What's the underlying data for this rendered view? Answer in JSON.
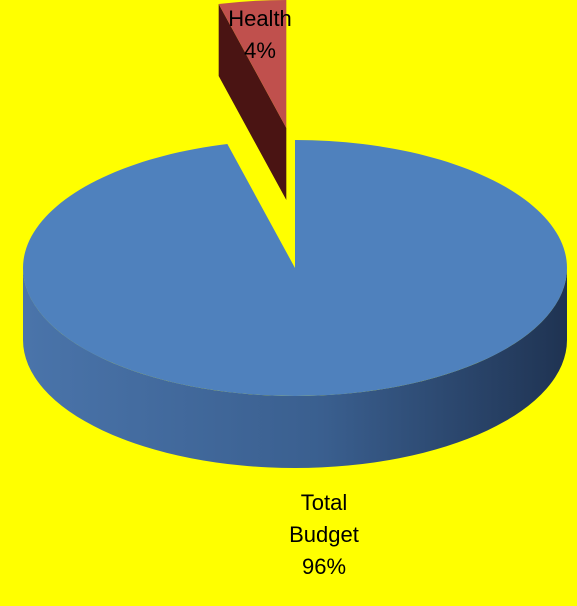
{
  "background": "#FFFF00",
  "chart_data": {
    "type": "pie",
    "style": "3d-exploded",
    "title": "",
    "slices": [
      {
        "label_lines": [
          "Total",
          "Budget"
        ],
        "percent_label": "96%",
        "value": 96,
        "color": "#4F81BD",
        "side_color_dark": "#1F3352",
        "side_color_light": "#4A74AA",
        "exploded": false
      },
      {
        "label_lines": [
          "Health"
        ],
        "percent_label": "4%",
        "value": 4,
        "color": "#C0504D",
        "side_color_dark": "#4A1413",
        "side_color_light": "#8C2C2A",
        "exploded": true
      }
    ],
    "legend": "none",
    "data_labels": "outside"
  }
}
